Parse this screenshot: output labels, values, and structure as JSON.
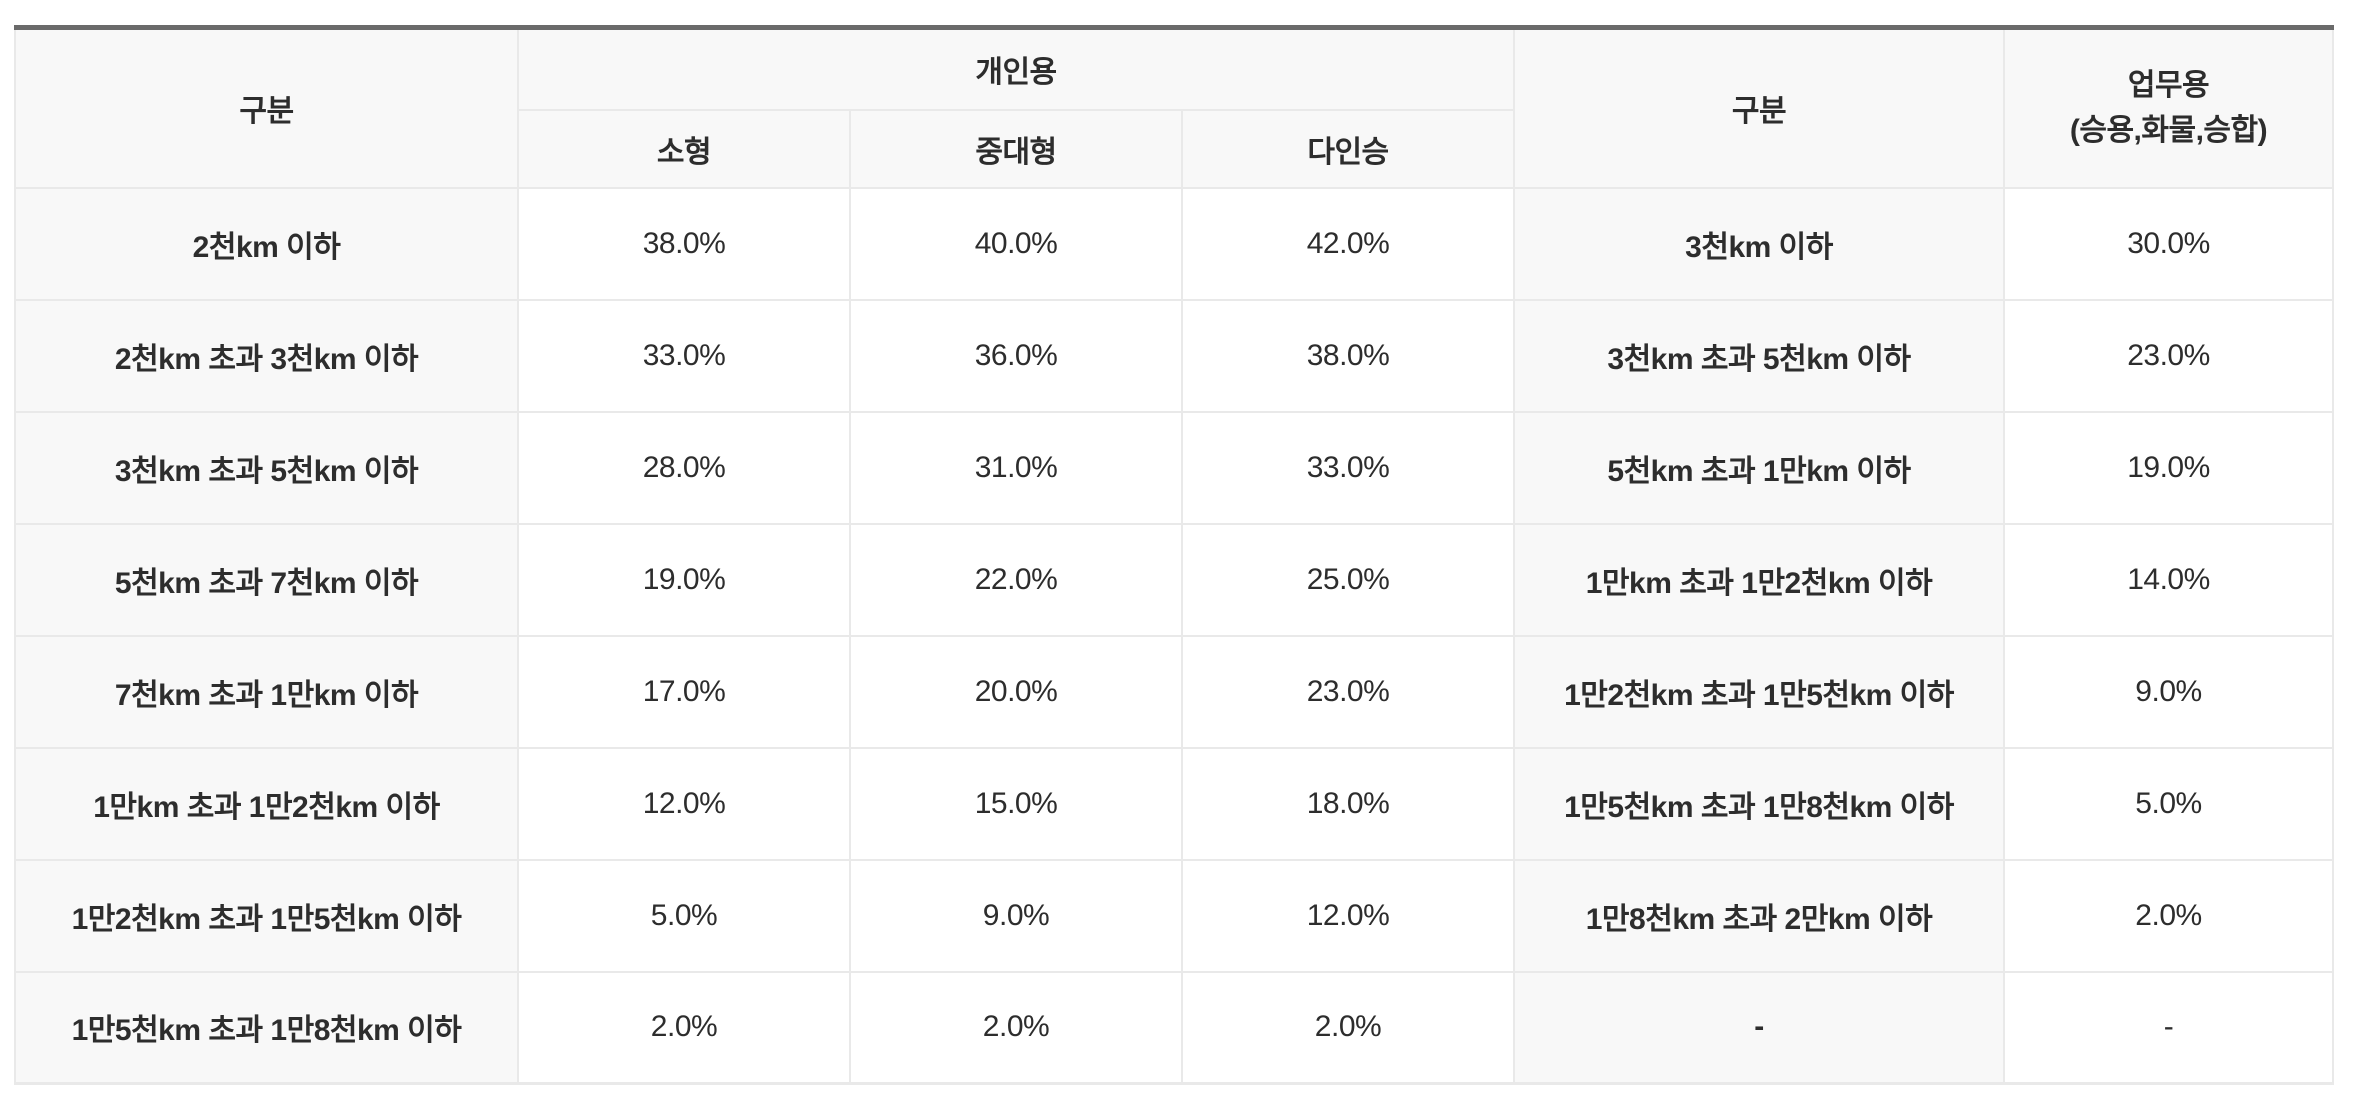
{
  "table": {
    "header": {
      "left_group_label": "구분",
      "personal_group_label": "개인용",
      "personal_subcols": [
        "소형",
        "중대형",
        "다인승"
      ],
      "right_group_label": "구분",
      "business_group_label_line1": "업무용",
      "business_group_label_line2": "(승용,화물,승합)"
    },
    "rows": [
      {
        "personal_range": "2천km 이하",
        "small": "38.0%",
        "mid_large": "40.0%",
        "multi_seat": "42.0%",
        "business_range": "3천km 이하",
        "business": "30.0%"
      },
      {
        "personal_range": "2천km 초과 3천km 이하",
        "small": "33.0%",
        "mid_large": "36.0%",
        "multi_seat": "38.0%",
        "business_range": "3천km 초과 5천km 이하",
        "business": "23.0%"
      },
      {
        "personal_range": "3천km 초과 5천km 이하",
        "small": "28.0%",
        "mid_large": "31.0%",
        "multi_seat": "33.0%",
        "business_range": "5천km 초과 1만km 이하",
        "business": "19.0%"
      },
      {
        "personal_range": "5천km 초과 7천km 이하",
        "small": "19.0%",
        "mid_large": "22.0%",
        "multi_seat": "25.0%",
        "business_range": "1만km 초과 1만2천km 이하",
        "business": "14.0%"
      },
      {
        "personal_range": "7천km 초과 1만km 이하",
        "small": "17.0%",
        "mid_large": "20.0%",
        "multi_seat": "23.0%",
        "business_range": "1만2천km 초과 1만5천km 이하",
        "business": "9.0%"
      },
      {
        "personal_range": "1만km 초과 1만2천km 이하",
        "small": "12.0%",
        "mid_large": "15.0%",
        "multi_seat": "18.0%",
        "business_range": "1만5천km 초과 1만8천km 이하",
        "business": "5.0%"
      },
      {
        "personal_range": "1만2천km 초과 1만5천km 이하",
        "small": "5.0%",
        "mid_large": "9.0%",
        "multi_seat": "12.0%",
        "business_range": "1만8천km 초과 2만km 이하",
        "business": "2.0%"
      },
      {
        "personal_range": "1만5천km 초과 1만8천km 이하",
        "small": "2.0%",
        "mid_large": "2.0%",
        "multi_seat": "2.0%",
        "business_range": "-",
        "business": "-"
      }
    ],
    "colors": {
      "top_border": "#6a6a6a",
      "cell_border": "#e9e9e9",
      "header_bg": "#f8f8f8",
      "label_text": "#2d2d2d",
      "subheader_text": "#5f5f5f"
    }
  }
}
